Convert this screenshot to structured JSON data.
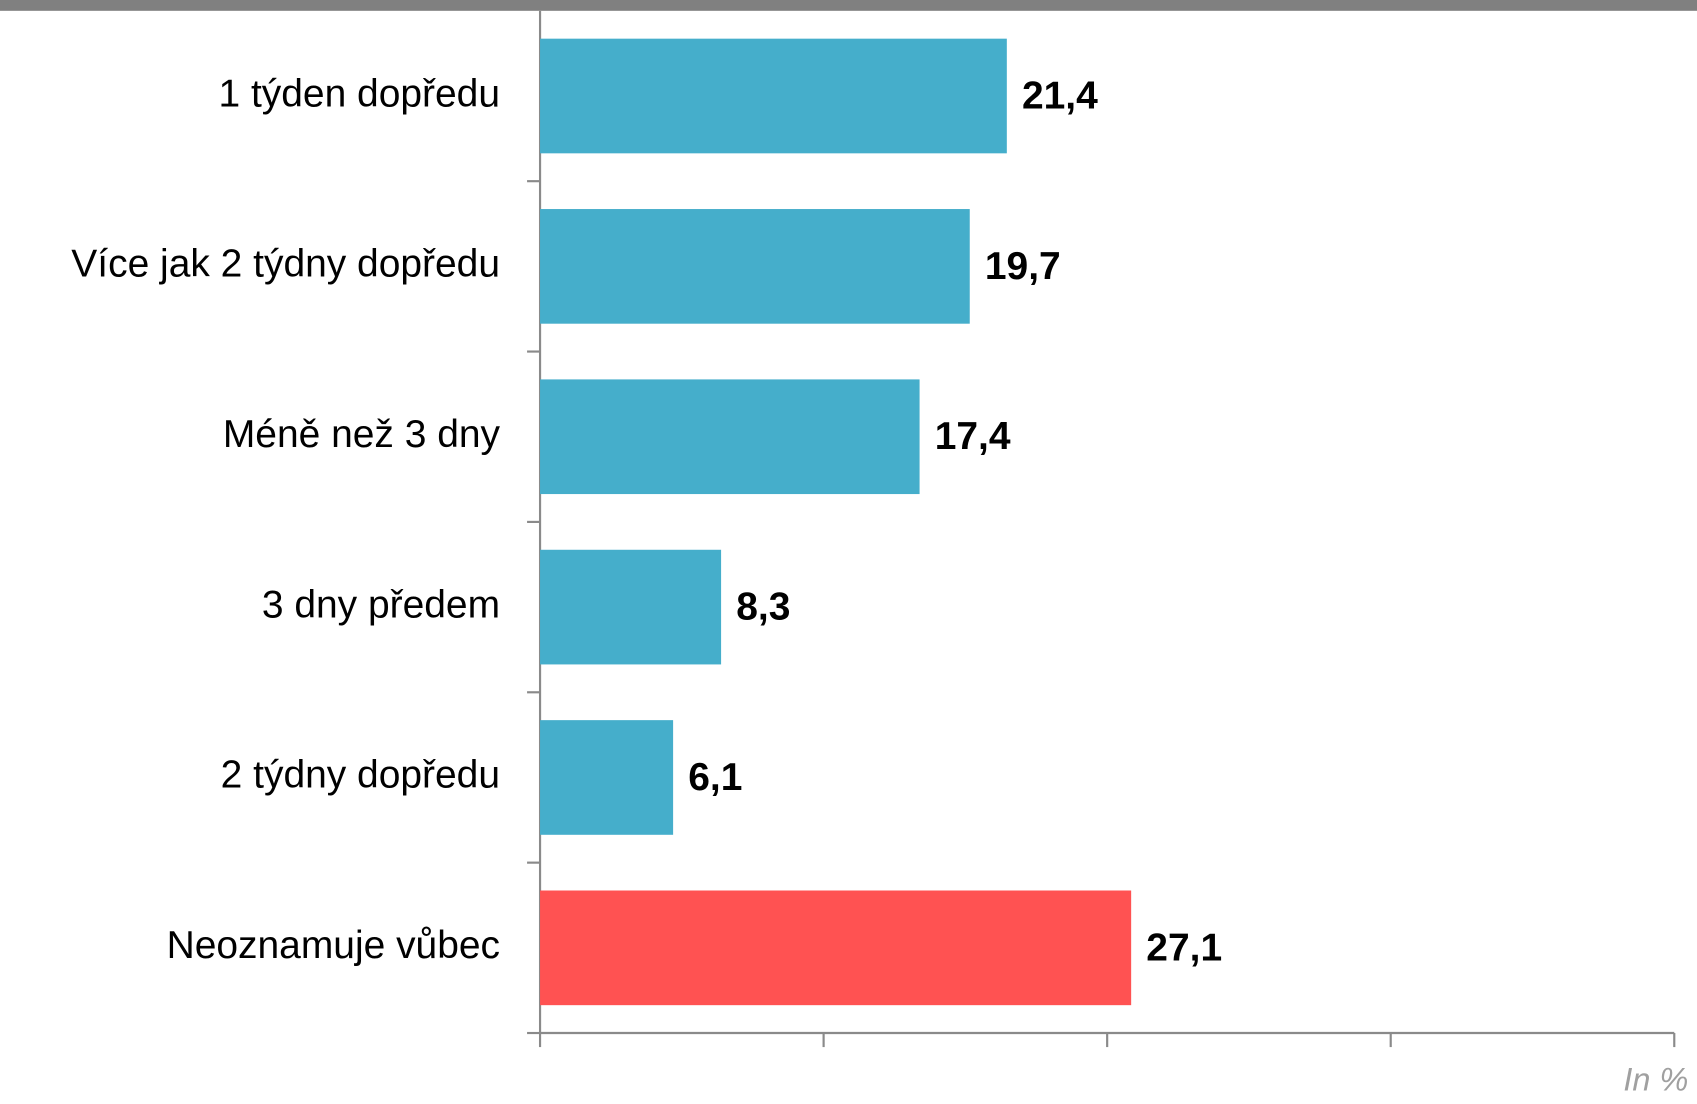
{
  "chart_data": {
    "type": "bar",
    "orientation": "horizontal",
    "categories": [
      "1 týden dopředu",
      "Více jak 2 týdny dopředu",
      "Méně než 3 dny",
      "3 dny předem",
      "2 týdny dopředu",
      "Neoznamuje vůbec"
    ],
    "values": [
      21.4,
      19.7,
      17.4,
      8.3,
      6.1,
      27.1
    ],
    "value_labels": [
      "21,4",
      "19,7",
      "17,4",
      "8,3",
      "6,1",
      "27,1"
    ],
    "colors": [
      "#45aecb",
      "#45aecb",
      "#45aecb",
      "#45aecb",
      "#45aecb",
      "#ff5252"
    ],
    "xlim": [
      0,
      52
    ],
    "xticks": [
      0,
      13,
      26,
      39,
      52
    ],
    "annotation": "In %"
  }
}
